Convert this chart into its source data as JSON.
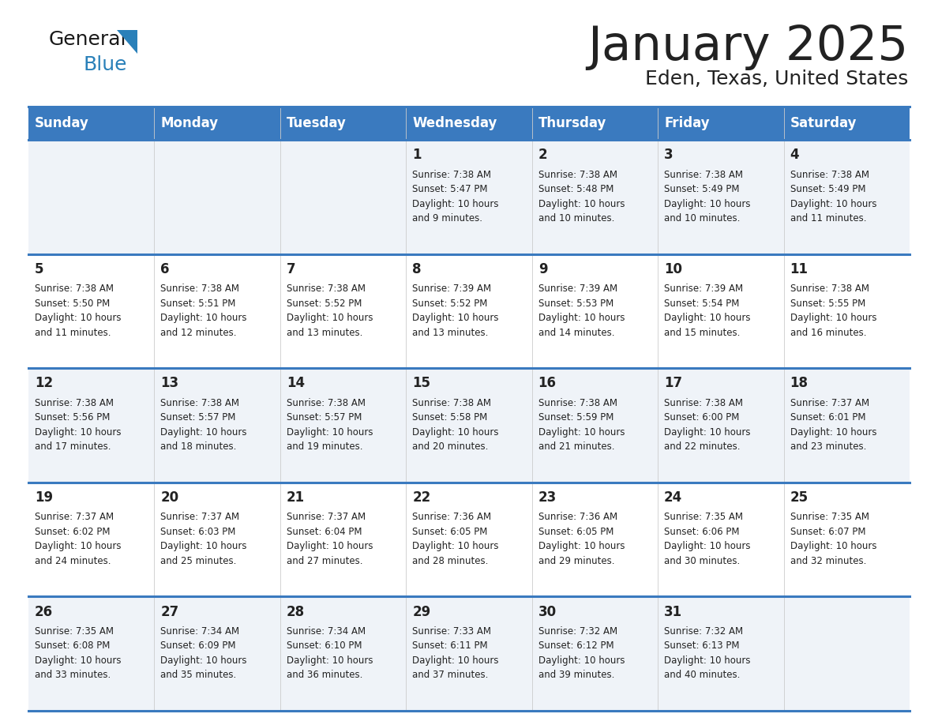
{
  "title": "January 2025",
  "subtitle": "Eden, Texas, United States",
  "header_bg": "#3a7abf",
  "header_text_color": "#ffffff",
  "days_of_week": [
    "Sunday",
    "Monday",
    "Tuesday",
    "Wednesday",
    "Thursday",
    "Friday",
    "Saturday"
  ],
  "row_colors": [
    "#eff3f8",
    "#ffffff"
  ],
  "separator_color": "#3a7abf",
  "text_color": "#222222",
  "day_num_color": "#222222",
  "logo_color_general": "#1a1a1a",
  "logo_color_blue": "#2980b9",
  "logo_triangle_color": "#2980b9",
  "calendar_data": [
    [
      "",
      "",
      "",
      "1\nSunrise: 7:38 AM\nSunset: 5:47 PM\nDaylight: 10 hours\nand 9 minutes.",
      "2\nSunrise: 7:38 AM\nSunset: 5:48 PM\nDaylight: 10 hours\nand 10 minutes.",
      "3\nSunrise: 7:38 AM\nSunset: 5:49 PM\nDaylight: 10 hours\nand 10 minutes.",
      "4\nSunrise: 7:38 AM\nSunset: 5:49 PM\nDaylight: 10 hours\nand 11 minutes."
    ],
    [
      "5\nSunrise: 7:38 AM\nSunset: 5:50 PM\nDaylight: 10 hours\nand 11 minutes.",
      "6\nSunrise: 7:38 AM\nSunset: 5:51 PM\nDaylight: 10 hours\nand 12 minutes.",
      "7\nSunrise: 7:38 AM\nSunset: 5:52 PM\nDaylight: 10 hours\nand 13 minutes.",
      "8\nSunrise: 7:39 AM\nSunset: 5:52 PM\nDaylight: 10 hours\nand 13 minutes.",
      "9\nSunrise: 7:39 AM\nSunset: 5:53 PM\nDaylight: 10 hours\nand 14 minutes.",
      "10\nSunrise: 7:39 AM\nSunset: 5:54 PM\nDaylight: 10 hours\nand 15 minutes.",
      "11\nSunrise: 7:38 AM\nSunset: 5:55 PM\nDaylight: 10 hours\nand 16 minutes."
    ],
    [
      "12\nSunrise: 7:38 AM\nSunset: 5:56 PM\nDaylight: 10 hours\nand 17 minutes.",
      "13\nSunrise: 7:38 AM\nSunset: 5:57 PM\nDaylight: 10 hours\nand 18 minutes.",
      "14\nSunrise: 7:38 AM\nSunset: 5:57 PM\nDaylight: 10 hours\nand 19 minutes.",
      "15\nSunrise: 7:38 AM\nSunset: 5:58 PM\nDaylight: 10 hours\nand 20 minutes.",
      "16\nSunrise: 7:38 AM\nSunset: 5:59 PM\nDaylight: 10 hours\nand 21 minutes.",
      "17\nSunrise: 7:38 AM\nSunset: 6:00 PM\nDaylight: 10 hours\nand 22 minutes.",
      "18\nSunrise: 7:37 AM\nSunset: 6:01 PM\nDaylight: 10 hours\nand 23 minutes."
    ],
    [
      "19\nSunrise: 7:37 AM\nSunset: 6:02 PM\nDaylight: 10 hours\nand 24 minutes.",
      "20\nSunrise: 7:37 AM\nSunset: 6:03 PM\nDaylight: 10 hours\nand 25 minutes.",
      "21\nSunrise: 7:37 AM\nSunset: 6:04 PM\nDaylight: 10 hours\nand 27 minutes.",
      "22\nSunrise: 7:36 AM\nSunset: 6:05 PM\nDaylight: 10 hours\nand 28 minutes.",
      "23\nSunrise: 7:36 AM\nSunset: 6:05 PM\nDaylight: 10 hours\nand 29 minutes.",
      "24\nSunrise: 7:35 AM\nSunset: 6:06 PM\nDaylight: 10 hours\nand 30 minutes.",
      "25\nSunrise: 7:35 AM\nSunset: 6:07 PM\nDaylight: 10 hours\nand 32 minutes."
    ],
    [
      "26\nSunrise: 7:35 AM\nSunset: 6:08 PM\nDaylight: 10 hours\nand 33 minutes.",
      "27\nSunrise: 7:34 AM\nSunset: 6:09 PM\nDaylight: 10 hours\nand 35 minutes.",
      "28\nSunrise: 7:34 AM\nSunset: 6:10 PM\nDaylight: 10 hours\nand 36 minutes.",
      "29\nSunrise: 7:33 AM\nSunset: 6:11 PM\nDaylight: 10 hours\nand 37 minutes.",
      "30\nSunrise: 7:32 AM\nSunset: 6:12 PM\nDaylight: 10 hours\nand 39 minutes.",
      "31\nSunrise: 7:32 AM\nSunset: 6:13 PM\nDaylight: 10 hours\nand 40 minutes.",
      ""
    ]
  ]
}
